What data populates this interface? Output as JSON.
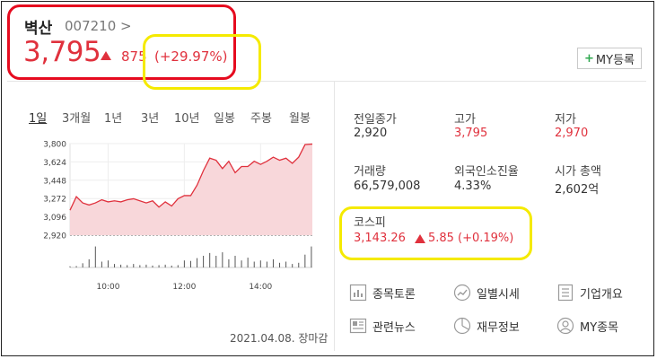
{
  "stock": {
    "name": "벽산",
    "code": "007210 >",
    "price": "3,795",
    "change": "875",
    "change_pct": "(+29.97%)",
    "direction": "up",
    "up_color": "#e0313d"
  },
  "my_button": {
    "label": "MY등록",
    "icon": "plus-icon"
  },
  "chart_tabs": [
    {
      "label": "1일",
      "active": true
    },
    {
      "label": "3개월"
    },
    {
      "label": "1년"
    },
    {
      "label": "3년"
    },
    {
      "label": "10년"
    },
    {
      "label": "일봉"
    },
    {
      "label": "주봉"
    },
    {
      "label": "월봉"
    }
  ],
  "stats": {
    "prev_close": {
      "label": "전일종가",
      "value": "2,920"
    },
    "high": {
      "label": "고가",
      "value": "3,795"
    },
    "low": {
      "label": "저가",
      "value": "2,970"
    },
    "volume": {
      "label": "거래량",
      "value": "66,579,008"
    },
    "foreign_ratio": {
      "label": "외국인소진율",
      "value": "4.33%"
    },
    "market_cap": {
      "label": "시가 총액",
      "value": "2,602억"
    }
  },
  "index": {
    "label": "코스피",
    "value": "3,143.26",
    "change": "5.85",
    "change_pct": "(+0.19%)"
  },
  "menu": [
    {
      "label": "종목토론",
      "icon": "chart-board-icon"
    },
    {
      "label": "일별시세",
      "icon": "trend-circle-icon"
    },
    {
      "label": "기업개요",
      "icon": "document-list-icon"
    },
    {
      "label": "관련뉴스",
      "icon": "newspaper-icon"
    },
    {
      "label": "재무정보",
      "icon": "pie-chart-icon"
    },
    {
      "label": "MY종목",
      "icon": "user-icon"
    }
  ],
  "footer": {
    "date": "2021.04.08. 장마감"
  },
  "chart_data": {
    "type": "area",
    "y_ticks": [
      "3,800",
      "3,624",
      "3,448",
      "3,272",
      "3,096",
      "2,920"
    ],
    "x_ticks": [
      "10:00",
      "12:00",
      "14:00"
    ],
    "ylim": [
      2920,
      3800
    ],
    "baseline": 2920,
    "x": [
      "09:00",
      "09:10",
      "09:20",
      "09:30",
      "09:40",
      "09:50",
      "10:00",
      "10:10",
      "10:20",
      "10:30",
      "10:40",
      "10:50",
      "11:00",
      "11:10",
      "11:20",
      "11:30",
      "11:40",
      "11:50",
      "12:00",
      "12:10",
      "12:20",
      "12:30",
      "12:40",
      "12:50",
      "13:00",
      "13:10",
      "13:20",
      "13:30",
      "13:40",
      "13:50",
      "14:00",
      "14:10",
      "14:20",
      "14:30",
      "14:40",
      "14:50",
      "15:00",
      "15:10",
      "15:20",
      "15:30"
    ],
    "values": [
      3160,
      3290,
      3230,
      3210,
      3230,
      3260,
      3240,
      3250,
      3240,
      3260,
      3270,
      3250,
      3230,
      3250,
      3190,
      3240,
      3200,
      3270,
      3300,
      3300,
      3400,
      3540,
      3660,
      3640,
      3560,
      3630,
      3520,
      3580,
      3580,
      3630,
      3600,
      3630,
      3670,
      3640,
      3660,
      3610,
      3670,
      3790,
      3795,
      3795
    ],
    "volume": [
      0.05,
      0.06,
      0.18,
      0.35,
      0.9,
      0.25,
      0.3,
      0.15,
      0.12,
      0.1,
      0.15,
      0.1,
      0.12,
      0.08,
      0.1,
      0.12,
      0.08,
      0.1,
      0.3,
      0.28,
      0.4,
      0.5,
      0.62,
      0.5,
      0.65,
      0.35,
      0.5,
      0.3,
      0.42,
      0.25,
      0.3,
      0.25,
      0.35,
      0.2,
      0.25,
      0.15,
      0.2,
      0.55,
      0.9,
      0.3
    ]
  }
}
